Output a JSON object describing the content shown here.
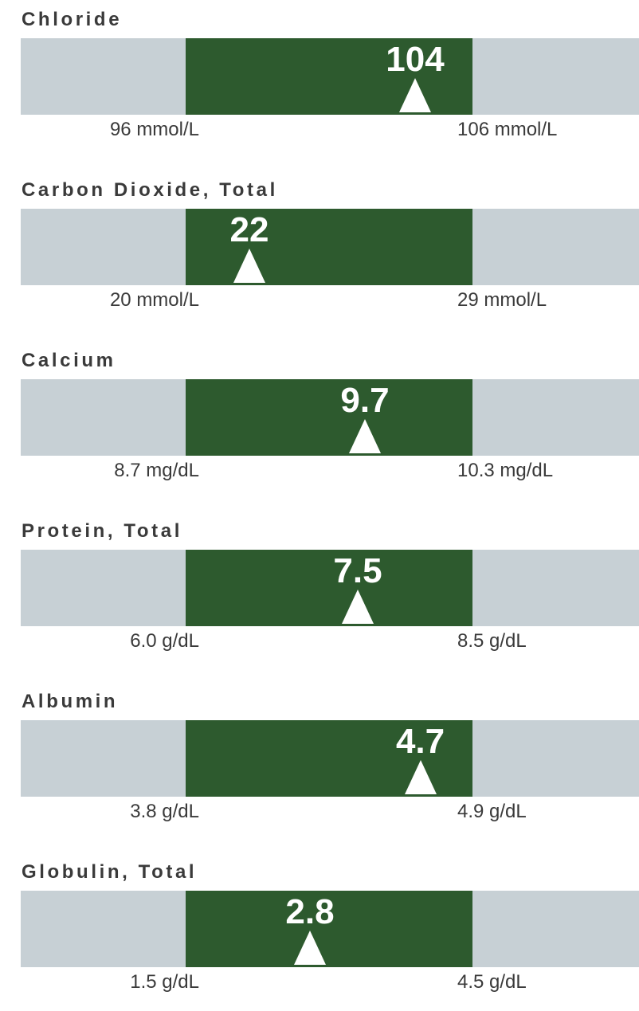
{
  "colors": {
    "normal_band": "#2d5a2e",
    "out_of_range_track": "#c7d0d5",
    "marker": "#ffffff",
    "text": "#3a3a3a"
  },
  "tests": [
    {
      "name": "Chloride",
      "value": "104",
      "value_num": 104,
      "low": 96,
      "high": 106,
      "low_label": "96 mmol/L",
      "high_label": "106 mmol/L",
      "marker_icon": "triangle-up-icon"
    },
    {
      "name": "Carbon Dioxide, Total",
      "value": "22",
      "value_num": 22,
      "low": 20,
      "high": 29,
      "low_label": "20 mmol/L",
      "high_label": "29 mmol/L",
      "marker_icon": "triangle-up-icon"
    },
    {
      "name": "Calcium",
      "value": "9.7",
      "value_num": 9.7,
      "low": 8.7,
      "high": 10.3,
      "low_label": "8.7 mg/dL",
      "high_label": "10.3 mg/dL",
      "marker_icon": "triangle-up-icon"
    },
    {
      "name": "Protein, Total",
      "value": "7.5",
      "value_num": 7.5,
      "low": 6.0,
      "high": 8.5,
      "low_label": "6.0 g/dL",
      "high_label": "8.5 g/dL",
      "marker_icon": "triangle-up-icon"
    },
    {
      "name": "Albumin",
      "value": "4.7",
      "value_num": 4.7,
      "low": 3.8,
      "high": 4.9,
      "low_label": "3.8 g/dL",
      "high_label": "4.9 g/dL",
      "marker_icon": "triangle-up-icon"
    },
    {
      "name": "Globulin, Total",
      "value": "2.8",
      "value_num": 2.8,
      "low": 1.5,
      "high": 4.5,
      "low_label": "1.5 g/dL",
      "high_label": "4.5 g/dL",
      "marker_icon": "triangle-up-icon"
    }
  ]
}
